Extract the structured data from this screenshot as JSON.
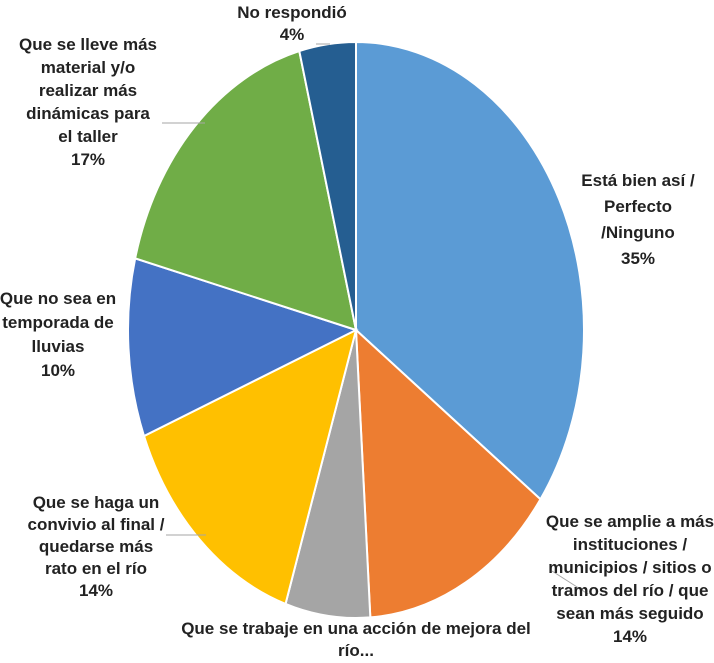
{
  "chart_data": {
    "type": "pie",
    "title": "",
    "slices": [
      {
        "label": [
          "Está bien así /",
          "Perfecto",
          "/Ninguno"
        ],
        "value": 35,
        "value_label": "35%",
        "color": "#5b9bd5"
      },
      {
        "label": [
          "Que se amplie a más",
          "instituciones /",
          "municipios / sitios o",
          "tramos del río / que",
          "sean más seguido"
        ],
        "value": 14,
        "value_label": "14%",
        "color": "#ed7d31"
      },
      {
        "label": [
          "Que se trabaje en una acción de mejora del",
          "río..."
        ],
        "value": 6,
        "value_label": "",
        "color": "#a5a5a5"
      },
      {
        "label": [
          "Que se haga un",
          "convivio al final /",
          "quedarse más",
          "rato en el río"
        ],
        "value": 14,
        "value_label": "14%",
        "color": "#ffc000"
      },
      {
        "label": [
          "Que no sea en",
          "temporada de",
          "lluvias"
        ],
        "value": 10,
        "value_label": "10%",
        "color": "#4472c4"
      },
      {
        "label": [
          "Que se lleve más",
          "material y/o",
          "realizar más",
          "dinámicas para",
          "el taller"
        ],
        "value": 17,
        "value_label": "17%",
        "color": "#70ad47"
      },
      {
        "label": [
          "No respondió"
        ],
        "value": 4,
        "value_label": "4%",
        "color": "#255e91"
      }
    ]
  }
}
